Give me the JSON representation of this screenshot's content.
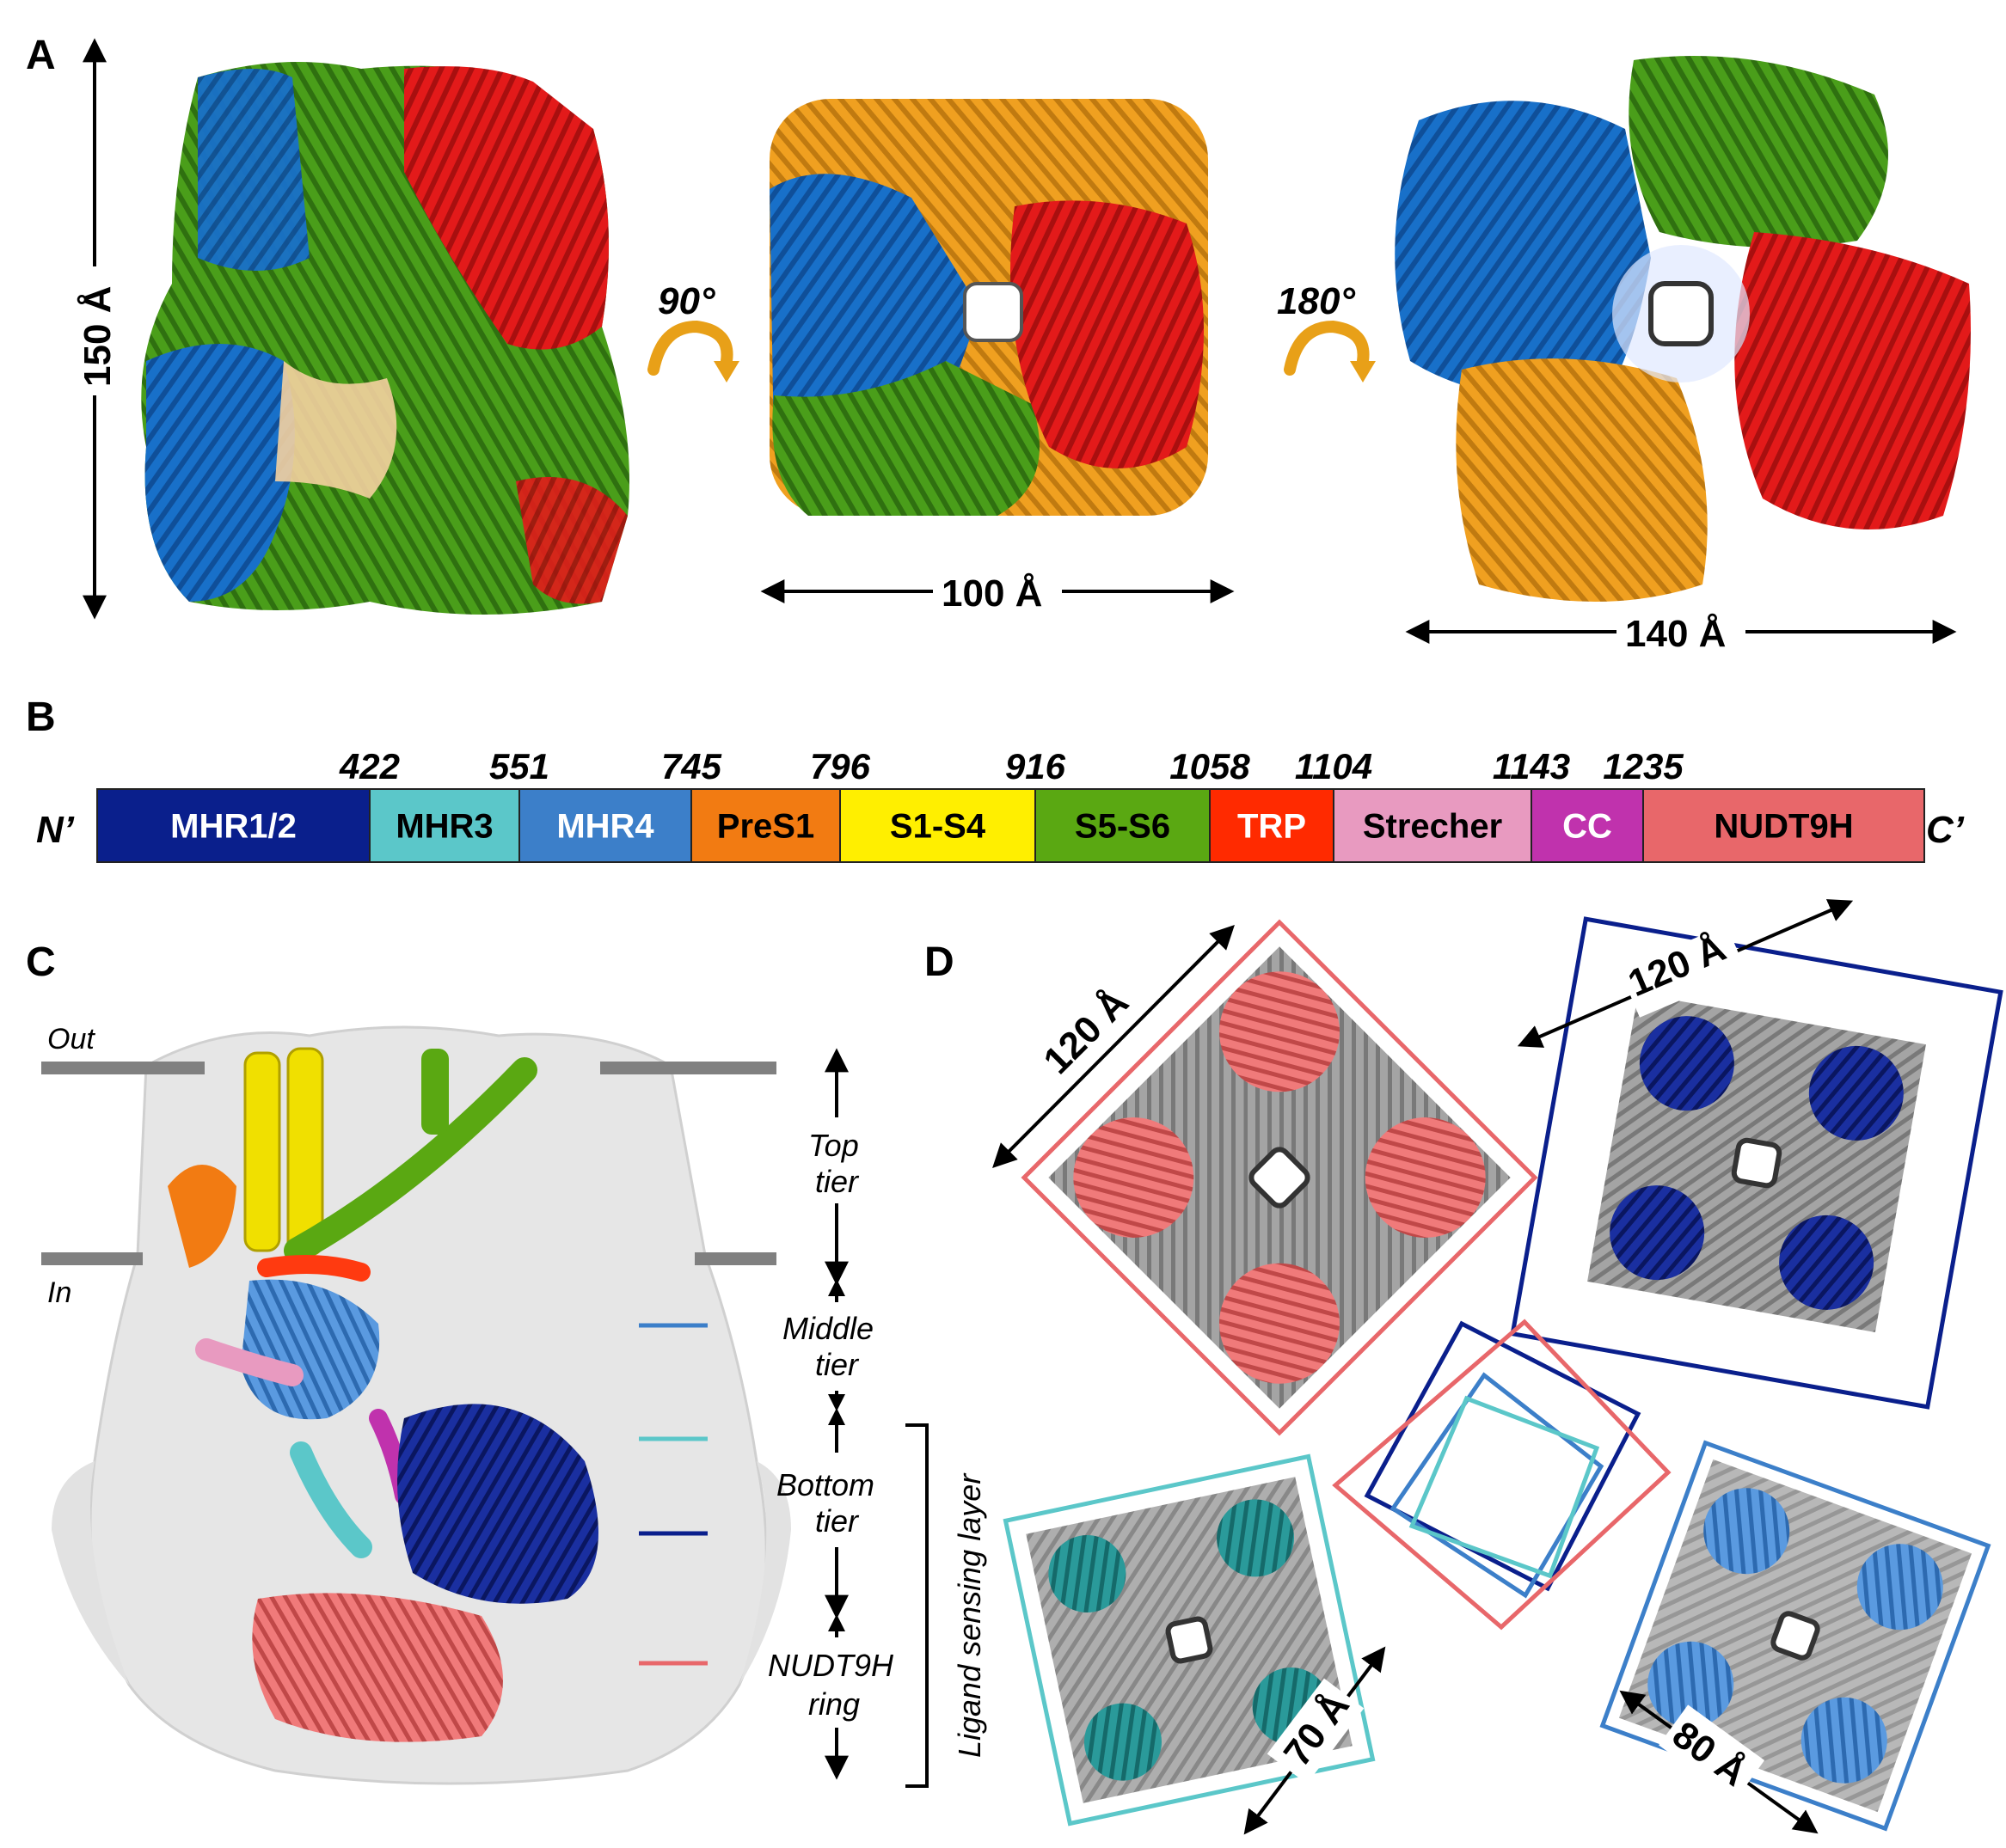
{
  "panels": {
    "A": {
      "letter": "A",
      "height_label": "150 Å",
      "rot1": "90°",
      "width1_label": "100 Å",
      "rot2": "180°",
      "width2_label": "140 Å"
    },
    "B": {
      "letter": "B",
      "n_term": "N’",
      "c_term": "C’",
      "domains": [
        {
          "label": "MHR1/2",
          "color": "#0a1f8c",
          "text_color": "#ffffff",
          "start_pos": ""
        },
        {
          "label": "MHR3",
          "color": "#5bc7c9",
          "text_color": "#000000",
          "start_pos": "422"
        },
        {
          "label": "MHR4",
          "color": "#3c7fc9",
          "text_color": "#ffffff",
          "start_pos": "551"
        },
        {
          "label": "PreS1",
          "color": "#f27b12",
          "text_color": "#000000",
          "start_pos": "745"
        },
        {
          "label": "S1-S4",
          "color": "#ffef00",
          "text_color": "#000000",
          "start_pos": "796"
        },
        {
          "label": "S5-S6",
          "color": "#5aa812",
          "text_color": "#000000",
          "start_pos": "916"
        },
        {
          "label": "TRP",
          "color": "#ff2a00",
          "text_color": "#ffffff",
          "start_pos": "1058"
        },
        {
          "label": "Strecher",
          "color": "#e89ac0",
          "text_color": "#000000",
          "start_pos": "1104"
        },
        {
          "label": "CC",
          "color": "#c032ad",
          "text_color": "#ffffff",
          "start_pos": "1143"
        },
        {
          "label": "NUDT9H",
          "color": "#e8676a",
          "text_color": "#000000",
          "start_pos": "1235"
        }
      ]
    },
    "C": {
      "letter": "C",
      "out_label": "Out",
      "in_label": "In",
      "tiers": {
        "top_1": "Top",
        "top_2": "tier",
        "middle_1": "Middle",
        "middle_2": "tier",
        "bottom_1": "Bottom",
        "bottom_2": "tier",
        "nudt_1": "NUDT9H",
        "nudt_2": "ring"
      },
      "bracket_label": "Ligand sensing layer",
      "marker_colors": [
        "#3c7fc9",
        "#5bc7c9",
        "#0a1f8c",
        "#e8676a"
      ]
    },
    "D": {
      "letter": "D",
      "labels": {
        "nudt": "120 Å",
        "mhr12": "120 Å",
        "mhr3": "70 Å",
        "mhr4": "80 Å"
      },
      "frame_colors": {
        "nudt": "#e8676a",
        "mhr12": "#0a1f8c",
        "mhr3": "#5bc7c9",
        "mhr4": "#3c7fc9"
      }
    }
  },
  "protein_colors": {
    "blue": "#1870c9",
    "green": "#4a9e1a",
    "red": "#e31a1a",
    "orange": "#f0a020",
    "grey": "#8a8a8a"
  }
}
